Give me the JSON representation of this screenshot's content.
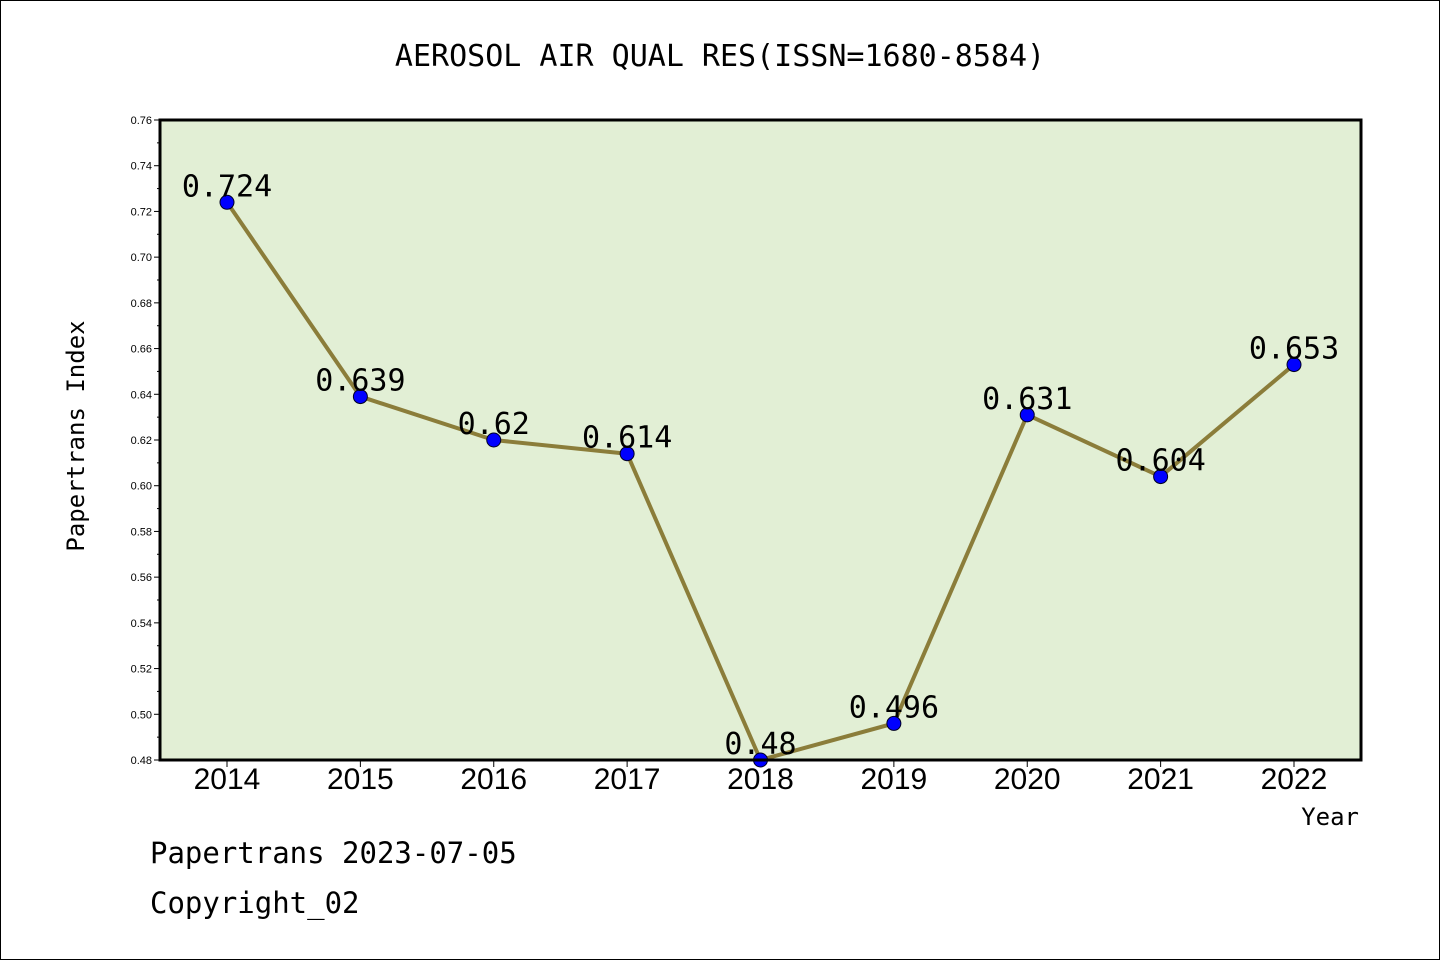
{
  "chart_data": {
    "type": "line",
    "title": "AEROSOL AIR QUAL RES(ISSN=1680-8584)",
    "xlabel": "Year",
    "ylabel": "Papertrans Index",
    "categories": [
      "2014",
      "2015",
      "2016",
      "2017",
      "2018",
      "2019",
      "2020",
      "2021",
      "2022"
    ],
    "series": [
      {
        "values": [
          0.724,
          0.639,
          0.62,
          0.614,
          0.48,
          0.496,
          0.631,
          0.604,
          0.653
        ],
        "labels": [
          "0.724",
          "0.639",
          "0.62",
          "0.614",
          "0.48",
          "0.496",
          "0.631",
          "0.604",
          "0.653"
        ]
      }
    ],
    "ylim": [
      0.48,
      0.76
    ],
    "yticks": [
      "0.48",
      "0.50",
      "0.52",
      "0.54",
      "0.56",
      "0.58",
      "0.60",
      "0.62",
      "0.64",
      "0.66",
      "0.68",
      "0.70",
      "0.72",
      "0.74",
      "0.76"
    ],
    "grid": false,
    "colors": {
      "plot_bg": "#e2efd5",
      "line": "#8b7d3a",
      "marker": "#0000ff"
    }
  },
  "footer": {
    "line1": "Papertrans 2023-07-05",
    "line2": "Copyright_02"
  }
}
